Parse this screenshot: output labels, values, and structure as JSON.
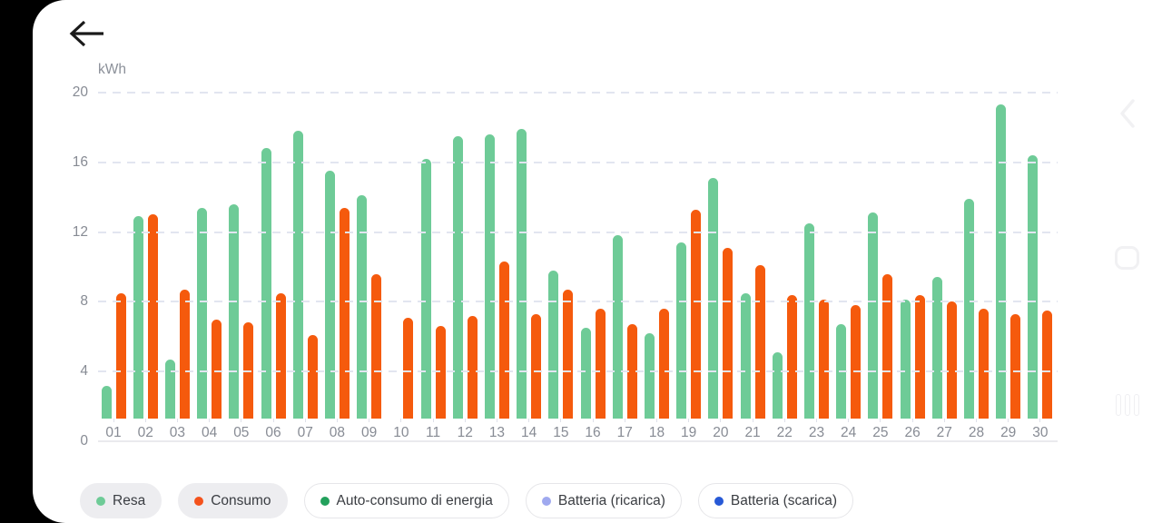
{
  "app": {
    "back_label": "back",
    "unit_label": "kWh"
  },
  "chart_data": {
    "type": "bar",
    "title": "",
    "xlabel": "",
    "ylabel": "kWh",
    "ylim": [
      0,
      20
    ],
    "yticks": [
      0,
      4,
      8,
      12,
      16,
      20
    ],
    "grid": "horizontal dashed",
    "legend_position": "bottom",
    "categories": [
      "01",
      "02",
      "03",
      "04",
      "05",
      "06",
      "07",
      "08",
      "09",
      "10",
      "11",
      "12",
      "13",
      "14",
      "15",
      "16",
      "17",
      "18",
      "19",
      "20",
      "21",
      "22",
      "23",
      "24",
      "25",
      "26",
      "27",
      "28",
      "29",
      "30"
    ],
    "series": [
      {
        "name": "Resa",
        "color": "#6ecb97",
        "values": [
          1.9,
          11.6,
          3.4,
          12.1,
          12.3,
          15.5,
          16.5,
          14.2,
          12.8,
          0,
          14.9,
          16.2,
          16.3,
          16.6,
          8.5,
          5.2,
          10.5,
          4.9,
          10.1,
          13.8,
          7.2,
          3.8,
          11.2,
          5.4,
          11.8,
          6.8,
          8.1,
          12.6,
          18.0,
          15.1
        ]
      },
      {
        "name": "Consumo",
        "color": "#f55a0d",
        "values": [
          7.2,
          11.7,
          7.4,
          5.7,
          5.5,
          7.2,
          4.8,
          12.1,
          8.3,
          5.8,
          5.3,
          5.9,
          9.0,
          6.0,
          7.4,
          6.3,
          5.4,
          6.3,
          12.0,
          9.8,
          8.8,
          7.1,
          6.8,
          6.5,
          8.3,
          7.1,
          6.7,
          6.3,
          6.0,
          6.2
        ]
      }
    ]
  },
  "legend": {
    "items": [
      {
        "label": "Resa",
        "color": "#6ecb97",
        "selected": true
      },
      {
        "label": "Consumo",
        "color": "#f4521c",
        "selected": true
      },
      {
        "label": "Auto-consumo di energia",
        "color": "#23a15c",
        "selected": false
      },
      {
        "label": "Batteria (ricarica)",
        "color": "#9fa9ef",
        "selected": false
      },
      {
        "label": "Batteria (scarica)",
        "color": "#2759d6",
        "selected": false
      }
    ]
  },
  "nav": {
    "icons": [
      "back-chevron",
      "home",
      "recents"
    ]
  },
  "colors": {
    "grid_dash": "#e2e5f0",
    "axis_text": "#878b94",
    "baseline": "#eaeaee",
    "nav_icon": "#f1f1f3"
  }
}
